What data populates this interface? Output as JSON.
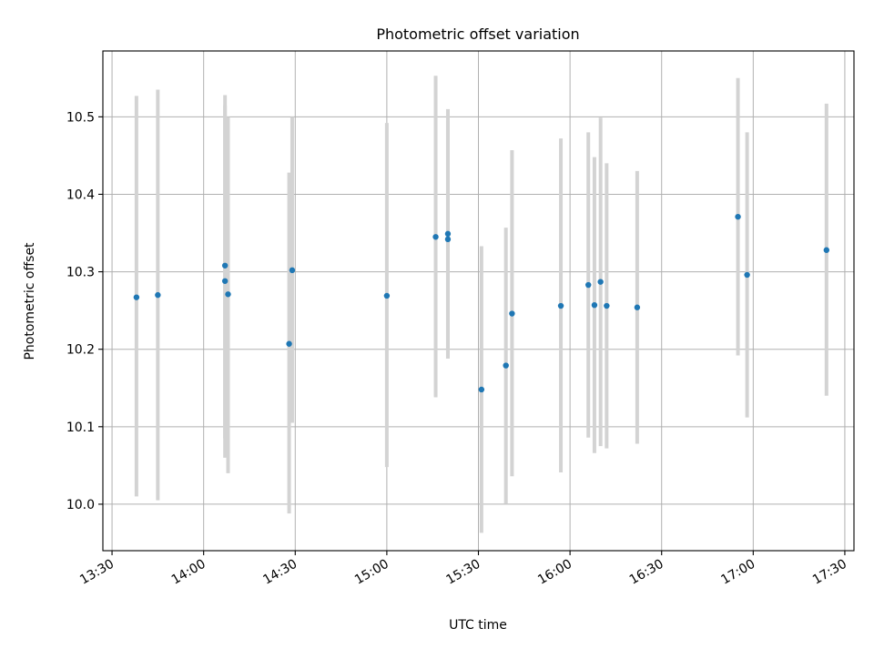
{
  "chart_data": {
    "type": "scatter",
    "title": "Photometric offset variation",
    "xlabel": "UTC time",
    "ylabel": "Photometric offset",
    "x_ticks": [
      "13:30",
      "14:00",
      "14:30",
      "15:00",
      "15:30",
      "16:00",
      "16:30",
      "17:00",
      "17:30"
    ],
    "y_ticks": [
      "10.0",
      "10.1",
      "10.2",
      "10.3",
      "10.4",
      "10.5"
    ],
    "xlim": [
      "13:27",
      "17:33"
    ],
    "ylim": [
      9.94,
      10.585
    ],
    "grid": true,
    "colors": {
      "point": "#1f77b4",
      "errorbar": "#d3d3d3",
      "grid": "#b0b0b0"
    },
    "points": [
      {
        "x": "13:38",
        "y": 10.267,
        "ylow": 10.01,
        "yhigh": 10.527
      },
      {
        "x": "13:45",
        "y": 10.27,
        "ylow": 10.005,
        "yhigh": 10.535
      },
      {
        "x": "14:07",
        "y": 10.308,
        "ylow": 10.085,
        "yhigh": 10.528
      },
      {
        "x": "14:07",
        "y": 10.288,
        "ylow": 10.06,
        "yhigh": 10.515
      },
      {
        "x": "14:08",
        "y": 10.271,
        "ylow": 10.04,
        "yhigh": 10.5
      },
      {
        "x": "14:28",
        "y": 10.207,
        "ylow": 9.988,
        "yhigh": 10.428
      },
      {
        "x": "14:29",
        "y": 10.302,
        "ylow": 10.105,
        "yhigh": 10.5
      },
      {
        "x": "15:00",
        "y": 10.269,
        "ylow": 10.048,
        "yhigh": 10.492
      },
      {
        "x": "15:16",
        "y": 10.345,
        "ylow": 10.138,
        "yhigh": 10.553
      },
      {
        "x": "15:20",
        "y": 10.342,
        "ylow": 10.188,
        "yhigh": 10.495
      },
      {
        "x": "15:20",
        "y": 10.349,
        "ylow": 10.188,
        "yhigh": 10.51
      },
      {
        "x": "15:31",
        "y": 10.148,
        "ylow": 9.963,
        "yhigh": 10.333
      },
      {
        "x": "15:39",
        "y": 10.179,
        "ylow": 10.001,
        "yhigh": 10.357
      },
      {
        "x": "15:41",
        "y": 10.246,
        "ylow": 10.036,
        "yhigh": 10.457
      },
      {
        "x": "15:57",
        "y": 10.256,
        "ylow": 10.041,
        "yhigh": 10.472
      },
      {
        "x": "16:06",
        "y": 10.283,
        "ylow": 10.086,
        "yhigh": 10.48
      },
      {
        "x": "16:08",
        "y": 10.257,
        "ylow": 10.066,
        "yhigh": 10.448
      },
      {
        "x": "16:10",
        "y": 10.287,
        "ylow": 10.075,
        "yhigh": 10.499
      },
      {
        "x": "16:12",
        "y": 10.256,
        "ylow": 10.072,
        "yhigh": 10.44
      },
      {
        "x": "16:22",
        "y": 10.254,
        "ylow": 10.078,
        "yhigh": 10.43
      },
      {
        "x": "16:55",
        "y": 10.371,
        "ylow": 10.192,
        "yhigh": 10.55
      },
      {
        "x": "16:58",
        "y": 10.296,
        "ylow": 10.112,
        "yhigh": 10.48
      },
      {
        "x": "17:24",
        "y": 10.328,
        "ylow": 10.14,
        "yhigh": 10.517
      }
    ]
  }
}
